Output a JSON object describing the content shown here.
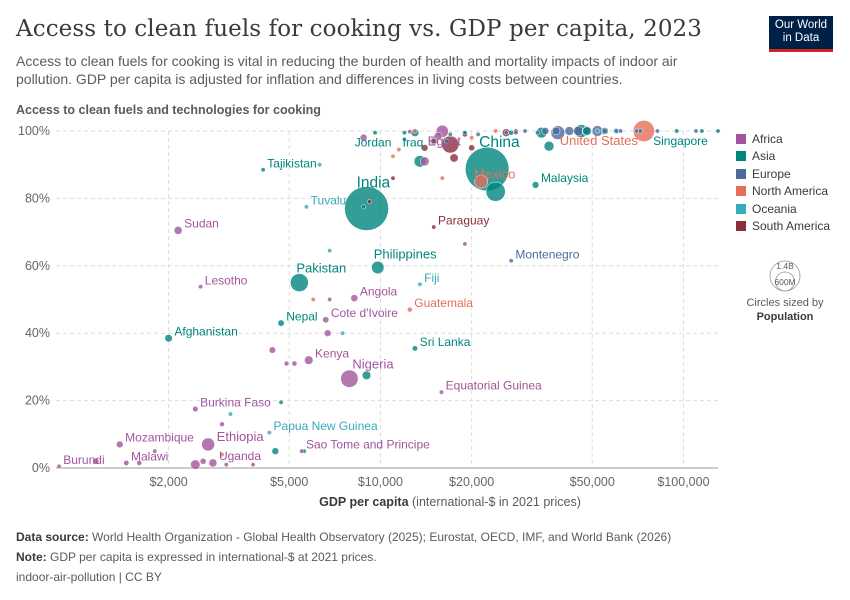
{
  "header": {
    "title": "Access to clean fuels for cooking vs. GDP per capita, 2023",
    "subtitle": "Access to clean fuels for cooking is vital in reducing the burden of health and mortality impacts of indoor air pollution. GDP per capita is adjusted for inflation and differences in living costs between countries.",
    "logo_line1": "Our World",
    "logo_line2": "in Data"
  },
  "footer": {
    "source_label": "Data source:",
    "source_text": "World Health Organization - Global Health Observatory (2025); Eurostat, OECD, IMF, and World Bank (2026)",
    "note_label": "Note:",
    "note_text": "GDP per capita is expressed in international-$ at 2021 prices.",
    "slug": "indoor-air-pollution | CC BY"
  },
  "size_legend": {
    "large": "1.4B",
    "small": "600M",
    "caption": "Circles sized by",
    "variable": "Population"
  },
  "chart_data": {
    "type": "scatter",
    "x_scale": "log",
    "xlabel_bold": "GDP per capita",
    "xlabel_rest": "(international-$ in 2021 prices)",
    "ylabel": "Access to clean fuels and technologies for cooking",
    "xlim": [
      850,
      130000
    ],
    "ylim": [
      0,
      100
    ],
    "x_ticks": [
      {
        "value": 2000,
        "label": "$2,000"
      },
      {
        "value": 5000,
        "label": "$5,000"
      },
      {
        "value": 10000,
        "label": "$10,000"
      },
      {
        "value": 20000,
        "label": "$20,000"
      },
      {
        "value": 50000,
        "label": "$50,000"
      },
      {
        "value": 100000,
        "label": "$100,000"
      }
    ],
    "y_ticks": [
      {
        "value": 0,
        "label": "0%"
      },
      {
        "value": 20,
        "label": "20%"
      },
      {
        "value": 40,
        "label": "40%"
      },
      {
        "value": 60,
        "label": "60%"
      },
      {
        "value": 80,
        "label": "80%"
      },
      {
        "value": 100,
        "label": "100%"
      }
    ],
    "regions": [
      {
        "name": "Africa",
        "color": "#a2559c"
      },
      {
        "name": "Asia",
        "color": "#00847e"
      },
      {
        "name": "Europe",
        "color": "#4c6a9c"
      },
      {
        "name": "North America",
        "color": "#e56e5a"
      },
      {
        "name": "Oceania",
        "color": "#38aaba"
      },
      {
        "name": "South America",
        "color": "#883039"
      }
    ],
    "labeled_points": [
      {
        "label": "China",
        "region": "Asia",
        "x": 22500,
        "y": 88.7,
        "pop": 1410
      },
      {
        "label": "India",
        "region": "Asia",
        "x": 9000,
        "y": 77,
        "pop": 1430
      },
      {
        "label": "United States",
        "region": "North America",
        "x": 74000,
        "y": 100,
        "pop": 335
      },
      {
        "label": "Singapore",
        "region": "Asia",
        "x": 115000,
        "y": 100,
        "pop": 6
      },
      {
        "label": "Jordan",
        "region": "Asia",
        "x": 9600,
        "y": 99.5,
        "pop": 11
      },
      {
        "label": "Iraq",
        "region": "Asia",
        "x": 13000,
        "y": 99.5,
        "pop": 45
      },
      {
        "label": "Egypt",
        "region": "Africa",
        "x": 16000,
        "y": 99.9,
        "pop": 112
      },
      {
        "label": "Mexico",
        "region": "North America",
        "x": 21500,
        "y": 85,
        "pop": 129
      },
      {
        "label": "Malaysia",
        "region": "Asia",
        "x": 32500,
        "y": 84,
        "pop": 34
      },
      {
        "label": "Tajikistan",
        "region": "Asia",
        "x": 4100,
        "y": 88.5,
        "pop": 10
      },
      {
        "label": "Tuvalu",
        "region": "Oceania",
        "x": 5700,
        "y": 77.5,
        "pop": 0.01
      },
      {
        "label": "Sudan",
        "region": "Africa",
        "x": 2150,
        "y": 70.5,
        "pop": 48
      },
      {
        "label": "Paraguay",
        "region": "South America",
        "x": 15000,
        "y": 71.5,
        "pop": 7
      },
      {
        "label": "Montenegro",
        "region": "Europe",
        "x": 27000,
        "y": 61.5,
        "pop": 0.6
      },
      {
        "label": "Philippines",
        "region": "Asia",
        "x": 9800,
        "y": 59.5,
        "pop": 117
      },
      {
        "label": "Lesotho",
        "region": "Africa",
        "x": 2550,
        "y": 53.8,
        "pop": 2.3
      },
      {
        "label": "Pakistan",
        "region": "Asia",
        "x": 5400,
        "y": 55,
        "pop": 240
      },
      {
        "label": "Fiji",
        "region": "Oceania",
        "x": 13500,
        "y": 54.5,
        "pop": 0.9
      },
      {
        "label": "Angola",
        "region": "Africa",
        "x": 8200,
        "y": 50.4,
        "pop": 37
      },
      {
        "label": "Guatemala",
        "region": "North America",
        "x": 12500,
        "y": 47,
        "pop": 18
      },
      {
        "label": "Cote d'Ivoire",
        "region": "Africa",
        "x": 6600,
        "y": 44,
        "pop": 29
      },
      {
        "label": "Nepal",
        "region": "Asia",
        "x": 4700,
        "y": 43,
        "pop": 30
      },
      {
        "label": "Afghanistan",
        "region": "Asia",
        "x": 2000,
        "y": 38.5,
        "pop": 42
      },
      {
        "label": "Sri Lanka",
        "region": "Asia",
        "x": 13000,
        "y": 35.5,
        "pop": 22
      },
      {
        "label": "Kenya",
        "region": "Africa",
        "x": 5800,
        "y": 32,
        "pop": 55
      },
      {
        "label": "Nigeria",
        "region": "Africa",
        "x": 7900,
        "y": 26.5,
        "pop": 224
      },
      {
        "label": "Equatorial Guinea",
        "region": "Africa",
        "x": 15900,
        "y": 22.5,
        "pop": 1.7
      },
      {
        "label": "Burkina Faso",
        "region": "Africa",
        "x": 2450,
        "y": 17.5,
        "pop": 23
      },
      {
        "label": "Papua New Guinea",
        "region": "Oceania",
        "x": 4300,
        "y": 10.5,
        "pop": 10
      },
      {
        "label": "Mozambique",
        "region": "Africa",
        "x": 1380,
        "y": 7,
        "pop": 34
      },
      {
        "label": "Ethiopia",
        "region": "Africa",
        "x": 2700,
        "y": 7,
        "pop": 127
      },
      {
        "label": "Sao Tome and Principe",
        "region": "Africa",
        "x": 5500,
        "y": 5,
        "pop": 0.2
      },
      {
        "label": "Malawi",
        "region": "Africa",
        "x": 1450,
        "y": 1.5,
        "pop": 21
      },
      {
        "label": "Uganda",
        "region": "Africa",
        "x": 2800,
        "y": 1.5,
        "pop": 49
      },
      {
        "label": "Burundi",
        "region": "Africa",
        "x": 870,
        "y": 0.5,
        "pop": 13
      }
    ],
    "other_points": [
      {
        "region": "Europe",
        "x": 38000,
        "y": 100,
        "pop": 45
      },
      {
        "region": "Europe",
        "x": 45000,
        "y": 100,
        "pop": 68
      },
      {
        "region": "Europe",
        "x": 52000,
        "y": 100,
        "pop": 84
      },
      {
        "region": "Europe",
        "x": 48000,
        "y": 100,
        "pop": 66
      },
      {
        "region": "Europe",
        "x": 55000,
        "y": 100,
        "pop": 17
      },
      {
        "region": "Europe",
        "x": 60000,
        "y": 100,
        "pop": 9
      },
      {
        "region": "Europe",
        "x": 62000,
        "y": 100,
        "pop": 10
      },
      {
        "region": "Europe",
        "x": 70000,
        "y": 100,
        "pop": 5
      },
      {
        "region": "Europe",
        "x": 82000,
        "y": 100,
        "pop": 5
      },
      {
        "region": "Europe",
        "x": 110000,
        "y": 100,
        "pop": 0.7
      },
      {
        "region": "Europe",
        "x": 42000,
        "y": 100,
        "pop": 59
      },
      {
        "region": "Europe",
        "x": 35000,
        "y": 100,
        "pop": 38
      },
      {
        "region": "Europe",
        "x": 30000,
        "y": 100,
        "pop": 10
      },
      {
        "region": "Europe",
        "x": 28000,
        "y": 99.5,
        "pop": 3
      },
      {
        "region": "Europe",
        "x": 26000,
        "y": 99.5,
        "pop": 2
      },
      {
        "region": "Europe",
        "x": 33000,
        "y": 99.5,
        "pop": 10
      },
      {
        "region": "Europe",
        "x": 38500,
        "y": 99.5,
        "pop": 143
      },
      {
        "region": "Europe",
        "x": 17000,
        "y": 99,
        "pop": 2.8
      },
      {
        "region": "Europe",
        "x": 15000,
        "y": 97,
        "pop": 37
      },
      {
        "region": "Europe",
        "x": 21000,
        "y": 99,
        "pop": 7
      },
      {
        "region": "Asia",
        "x": 46000,
        "y": 100,
        "pop": 125
      },
      {
        "region": "Asia",
        "x": 48000,
        "y": 100,
        "pop": 52
      },
      {
        "region": "Asia",
        "x": 55000,
        "y": 100,
        "pop": 36
      },
      {
        "region": "Asia",
        "x": 72000,
        "y": 100,
        "pop": 10
      },
      {
        "region": "Asia",
        "x": 95000,
        "y": 100,
        "pop": 3
      },
      {
        "region": "Asia",
        "x": 130000,
        "y": 100,
        "pop": 3
      },
      {
        "region": "Asia",
        "x": 34000,
        "y": 99.5,
        "pop": 85
      },
      {
        "region": "Asia",
        "x": 19000,
        "y": 99.5,
        "pop": 5
      },
      {
        "region": "Asia",
        "x": 12000,
        "y": 99.5,
        "pop": 5.4
      },
      {
        "region": "Asia",
        "x": 27000,
        "y": 99.5,
        "pop": 20
      },
      {
        "region": "Asia",
        "x": 13500,
        "y": 91,
        "pop": 100
      },
      {
        "region": "Asia",
        "x": 36000,
        "y": 95.5,
        "pop": 72
      },
      {
        "region": "Asia",
        "x": 12000,
        "y": 97.5,
        "pop": 3.7
      },
      {
        "region": "Asia",
        "x": 16500,
        "y": 97,
        "pop": 10
      },
      {
        "region": "Asia",
        "x": 8800,
        "y": 77.5,
        "pop": 0.8
      },
      {
        "region": "Asia",
        "x": 24000,
        "y": 82,
        "pop": 275
      },
      {
        "region": "Asia",
        "x": 9000,
        "y": 27.5,
        "pop": 55
      },
      {
        "region": "Asia",
        "x": 4700,
        "y": 19.5,
        "pop": 7
      },
      {
        "region": "Asia",
        "x": 5600,
        "y": 5,
        "pop": 4
      },
      {
        "region": "Asia",
        "x": 4500,
        "y": 5,
        "pop": 35
      },
      {
        "region": "North America",
        "x": 55000,
        "y": 100,
        "pop": 40
      },
      {
        "region": "North America",
        "x": 11500,
        "y": 94.5,
        "pop": 11
      },
      {
        "region": "North America",
        "x": 11000,
        "y": 92.5,
        "pop": 6
      },
      {
        "region": "North America",
        "x": 20000,
        "y": 98,
        "pop": 5
      },
      {
        "region": "North America",
        "x": 16000,
        "y": 86,
        "pop": 6.3
      },
      {
        "region": "North America",
        "x": 13000,
        "y": 100,
        "pop": 2.8
      },
      {
        "region": "North America",
        "x": 24000,
        "y": 100,
        "pop": 1.4
      },
      {
        "region": "North America",
        "x": 3000,
        "y": 4,
        "pop": 11.7
      },
      {
        "region": "North America",
        "x": 6000,
        "y": 50,
        "pop": 10
      },
      {
        "region": "South America",
        "x": 17000,
        "y": 96,
        "pop": 216
      },
      {
        "region": "South America",
        "x": 19000,
        "y": 99,
        "pop": 19.6
      },
      {
        "region": "South America",
        "x": 26000,
        "y": 99.5,
        "pop": 46
      },
      {
        "region": "South America",
        "x": 28000,
        "y": 100,
        "pop": 3.4
      },
      {
        "region": "South America",
        "x": 15000,
        "y": 97,
        "pop": 18
      },
      {
        "region": "South America",
        "x": 17500,
        "y": 92,
        "pop": 52
      },
      {
        "region": "South America",
        "x": 14000,
        "y": 95,
        "pop": 34
      },
      {
        "region": "South America",
        "x": 9200,
        "y": 79,
        "pop": 12
      },
      {
        "region": "South America",
        "x": 11000,
        "y": 86,
        "pop": 0.8
      },
      {
        "region": "South America",
        "x": 20000,
        "y": 95,
        "pop": 28
      },
      {
        "region": "Africa",
        "x": 12500,
        "y": 99.8,
        "pop": 12.5
      },
      {
        "region": "Africa",
        "x": 15500,
        "y": 98.5,
        "pop": 45
      },
      {
        "region": "Africa",
        "x": 8800,
        "y": 98,
        "pop": 37
      },
      {
        "region": "Africa",
        "x": 14000,
        "y": 91,
        "pop": 60
      },
      {
        "region": "Africa",
        "x": 19000,
        "y": 66.5,
        "pop": 2.6
      },
      {
        "region": "Africa",
        "x": 6800,
        "y": 50,
        "pop": 2.4
      },
      {
        "region": "Africa",
        "x": 6700,
        "y": 40,
        "pop": 34
      },
      {
        "region": "Africa",
        "x": 5200,
        "y": 31,
        "pop": 20
      },
      {
        "region": "Africa",
        "x": 4900,
        "y": 31,
        "pop": 17
      },
      {
        "region": "Africa",
        "x": 4400,
        "y": 35,
        "pop": 31
      },
      {
        "region": "Africa",
        "x": 3000,
        "y": 13,
        "pop": 18
      },
      {
        "region": "Africa",
        "x": 2600,
        "y": 2,
        "pop": 27
      },
      {
        "region": "Africa",
        "x": 3100,
        "y": 1,
        "pop": 14
      },
      {
        "region": "Africa",
        "x": 2450,
        "y": 1,
        "pop": 67
      },
      {
        "region": "Africa",
        "x": 1150,
        "y": 2,
        "pop": 30
      },
      {
        "region": "Africa",
        "x": 1600,
        "y": 1.5,
        "pop": 19
      },
      {
        "region": "Africa",
        "x": 3800,
        "y": 1,
        "pop": 14
      },
      {
        "region": "Africa",
        "x": 1800,
        "y": 5,
        "pop": 5.7
      },
      {
        "region": "Oceania",
        "x": 60000,
        "y": 100,
        "pop": 26
      },
      {
        "region": "Oceania",
        "x": 52000,
        "y": 100,
        "pop": 5.2
      },
      {
        "region": "Oceania",
        "x": 6300,
        "y": 90,
        "pop": 0.2
      },
      {
        "region": "Oceania",
        "x": 7500,
        "y": 40,
        "pop": 0.3
      },
      {
        "region": "Oceania",
        "x": 3200,
        "y": 16,
        "pop": 0.7
      },
      {
        "region": "Oceania",
        "x": 6800,
        "y": 64.5,
        "pop": 0.1
      }
    ]
  }
}
